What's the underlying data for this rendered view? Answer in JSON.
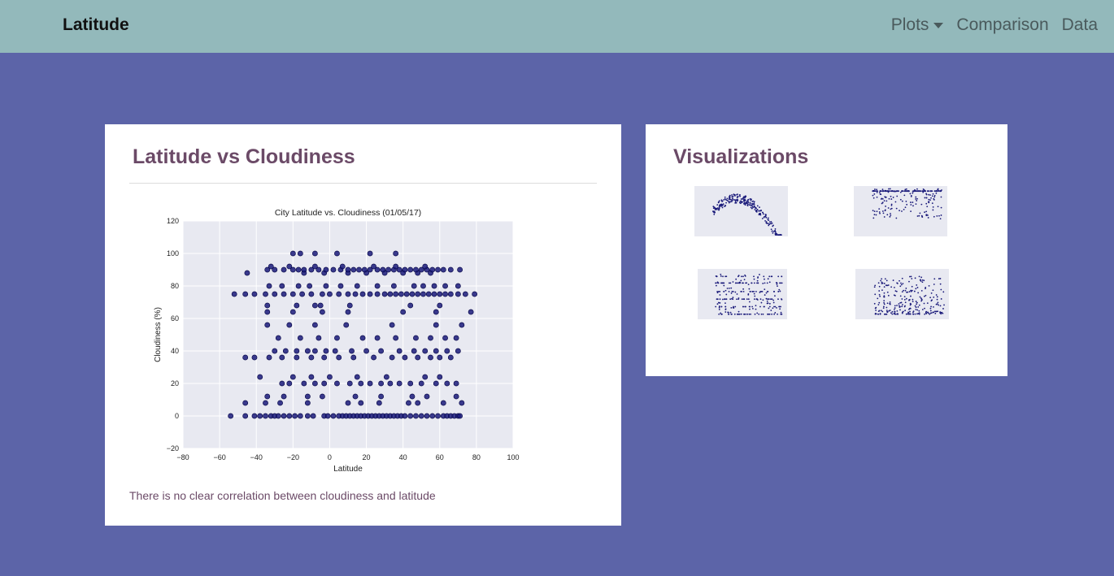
{
  "navbar": {
    "brand": "Latitude",
    "links": [
      {
        "label": "Plots",
        "dropdown": true
      },
      {
        "label": "Comparison"
      },
      {
        "label": "Data"
      }
    ]
  },
  "main_card": {
    "title": "Latitude vs Cloudiness",
    "caption": "There is no clear correlation between cloudiness and latitude"
  },
  "viz_card": {
    "title": "Visualizations",
    "thumbnails": [
      {
        "name": "max-temperature-plot"
      },
      {
        "name": "humidity-plot"
      },
      {
        "name": "cloudiness-plot"
      },
      {
        "name": "wind-speed-plot"
      }
    ]
  },
  "colors": {
    "page_bg": "#5c64a8",
    "navbar_bg": "#93b9bb",
    "title": "#6b4a67",
    "plot_bg": "#e8e9f1",
    "marker": "#1a1a7a"
  },
  "chart_data": {
    "type": "scatter",
    "title": "City Latitude vs. Cloudiness (01/05/17)",
    "xlabel": "Latitude",
    "ylabel": "Cloudiness (%)",
    "xlim": [
      -80,
      100
    ],
    "ylim": [
      -20,
      120
    ],
    "xticks": [
      -80,
      -60,
      -40,
      -20,
      0,
      20,
      40,
      60,
      80,
      100
    ],
    "yticks": [
      -20,
      0,
      20,
      40,
      60,
      80,
      100,
      120
    ],
    "grid": true,
    "points": [
      [
        -54,
        0
      ],
      [
        -46,
        0
      ],
      [
        -41,
        0
      ],
      [
        -38,
        0
      ],
      [
        -35,
        0
      ],
      [
        -32,
        0
      ],
      [
        -30,
        0
      ],
      [
        -28,
        0
      ],
      [
        -25,
        0
      ],
      [
        -22,
        0
      ],
      [
        -19,
        0
      ],
      [
        -16,
        0
      ],
      [
        -12,
        0
      ],
      [
        -9,
        0
      ],
      [
        -3,
        0
      ],
      [
        -1,
        0
      ],
      [
        2,
        0
      ],
      [
        5,
        0
      ],
      [
        7,
        0
      ],
      [
        9,
        0
      ],
      [
        11,
        0
      ],
      [
        13,
        0
      ],
      [
        15,
        0
      ],
      [
        17,
        0
      ],
      [
        19,
        0
      ],
      [
        21,
        0
      ],
      [
        23,
        0
      ],
      [
        25,
        0
      ],
      [
        27,
        0
      ],
      [
        29,
        0
      ],
      [
        31,
        0
      ],
      [
        33,
        0
      ],
      [
        35,
        0
      ],
      [
        37,
        0
      ],
      [
        39,
        0
      ],
      [
        41,
        0
      ],
      [
        44,
        0
      ],
      [
        47,
        0
      ],
      [
        50,
        0
      ],
      [
        53,
        0
      ],
      [
        56,
        0
      ],
      [
        59,
        0
      ],
      [
        62,
        0
      ],
      [
        64,
        0
      ],
      [
        66,
        0
      ],
      [
        68,
        0
      ],
      [
        70,
        0
      ],
      [
        71,
        0
      ],
      [
        -46,
        8
      ],
      [
        -35,
        8
      ],
      [
        -27,
        8
      ],
      [
        -12,
        8
      ],
      [
        10,
        8
      ],
      [
        17,
        8
      ],
      [
        27,
        8
      ],
      [
        43,
        8
      ],
      [
        48,
        8
      ],
      [
        62,
        8
      ],
      [
        72,
        8
      ],
      [
        -34,
        12
      ],
      [
        -25,
        12
      ],
      [
        -12,
        12
      ],
      [
        -4,
        12
      ],
      [
        14,
        12
      ],
      [
        28,
        12
      ],
      [
        45,
        12
      ],
      [
        53,
        12
      ],
      [
        69,
        12
      ],
      [
        -26,
        20
      ],
      [
        -22,
        20
      ],
      [
        -14,
        20
      ],
      [
        -8,
        20
      ],
      [
        -3,
        20
      ],
      [
        4,
        20
      ],
      [
        11,
        20
      ],
      [
        17,
        20
      ],
      [
        22,
        20
      ],
      [
        28,
        20
      ],
      [
        33,
        20
      ],
      [
        38,
        20
      ],
      [
        44,
        20
      ],
      [
        50,
        20
      ],
      [
        58,
        20
      ],
      [
        64,
        20
      ],
      [
        69,
        20
      ],
      [
        -38,
        24
      ],
      [
        -20,
        24
      ],
      [
        -10,
        24
      ],
      [
        0,
        24
      ],
      [
        15,
        24
      ],
      [
        31,
        24
      ],
      [
        52,
        24
      ],
      [
        60,
        24
      ],
      [
        -46,
        36
      ],
      [
        -41,
        36
      ],
      [
        -33,
        36
      ],
      [
        -26,
        36
      ],
      [
        -18,
        36
      ],
      [
        -10,
        36
      ],
      [
        -3,
        36
      ],
      [
        5,
        36
      ],
      [
        13,
        36
      ],
      [
        24,
        36
      ],
      [
        34,
        36
      ],
      [
        41,
        36
      ],
      [
        48,
        36
      ],
      [
        55,
        36
      ],
      [
        60,
        36
      ],
      [
        66,
        36
      ],
      [
        -30,
        40
      ],
      [
        -24,
        40
      ],
      [
        -18,
        40
      ],
      [
        -12,
        40
      ],
      [
        -8,
        40
      ],
      [
        -2,
        40
      ],
      [
        3,
        40
      ],
      [
        12,
        40
      ],
      [
        20,
        40
      ],
      [
        28,
        40
      ],
      [
        38,
        40
      ],
      [
        46,
        40
      ],
      [
        52,
        40
      ],
      [
        58,
        40
      ],
      [
        64,
        40
      ],
      [
        70,
        40
      ],
      [
        -28,
        48
      ],
      [
        -16,
        48
      ],
      [
        -6,
        48
      ],
      [
        4,
        48
      ],
      [
        18,
        48
      ],
      [
        26,
        48
      ],
      [
        36,
        48
      ],
      [
        47,
        48
      ],
      [
        55,
        48
      ],
      [
        63,
        48
      ],
      [
        69,
        48
      ],
      [
        -34,
        56
      ],
      [
        -22,
        56
      ],
      [
        -8,
        56
      ],
      [
        9,
        56
      ],
      [
        34,
        56
      ],
      [
        58,
        56
      ],
      [
        72,
        56
      ],
      [
        -34,
        64
      ],
      [
        -20,
        64
      ],
      [
        -4,
        64
      ],
      [
        10,
        64
      ],
      [
        40,
        64
      ],
      [
        58,
        64
      ],
      [
        77,
        64
      ],
      [
        -34,
        68
      ],
      [
        -18,
        68
      ],
      [
        -8,
        68
      ],
      [
        -5,
        68
      ],
      [
        11,
        68
      ],
      [
        44,
        68
      ],
      [
        60,
        68
      ],
      [
        -52,
        75
      ],
      [
        -46,
        75
      ],
      [
        -41,
        75
      ],
      [
        -35,
        75
      ],
      [
        -30,
        75
      ],
      [
        -25,
        75
      ],
      [
        -20,
        75
      ],
      [
        -15,
        75
      ],
      [
        -10,
        75
      ],
      [
        -4,
        75
      ],
      [
        0,
        75
      ],
      [
        5,
        75
      ],
      [
        10,
        75
      ],
      [
        14,
        75
      ],
      [
        18,
        75
      ],
      [
        22,
        75
      ],
      [
        26,
        75
      ],
      [
        30,
        75
      ],
      [
        33,
        75
      ],
      [
        36,
        75
      ],
      [
        39,
        75
      ],
      [
        42,
        75
      ],
      [
        45,
        75
      ],
      [
        48,
        75
      ],
      [
        51,
        75
      ],
      [
        54,
        75
      ],
      [
        57,
        75
      ],
      [
        60,
        75
      ],
      [
        63,
        75
      ],
      [
        66,
        75
      ],
      [
        70,
        75
      ],
      [
        74,
        75
      ],
      [
        79,
        75
      ],
      [
        -33,
        80
      ],
      [
        -26,
        80
      ],
      [
        -17,
        80
      ],
      [
        -11,
        80
      ],
      [
        -2,
        80
      ],
      [
        6,
        80
      ],
      [
        15,
        80
      ],
      [
        26,
        80
      ],
      [
        35,
        80
      ],
      [
        46,
        80
      ],
      [
        51,
        80
      ],
      [
        57,
        80
      ],
      [
        63,
        80
      ],
      [
        70,
        80
      ],
      [
        -45,
        88
      ],
      [
        -14,
        88
      ],
      [
        -3,
        88
      ],
      [
        10,
        88
      ],
      [
        20,
        88
      ],
      [
        30,
        88
      ],
      [
        40,
        88
      ],
      [
        48,
        88
      ],
      [
        55,
        88
      ],
      [
        -34,
        90
      ],
      [
        -30,
        90
      ],
      [
        -25,
        90
      ],
      [
        -20,
        90
      ],
      [
        -17,
        90
      ],
      [
        -14,
        90
      ],
      [
        -10,
        90
      ],
      [
        -6,
        90
      ],
      [
        -2,
        90
      ],
      [
        2,
        90
      ],
      [
        6,
        90
      ],
      [
        10,
        90
      ],
      [
        13,
        90
      ],
      [
        16,
        90
      ],
      [
        19,
        90
      ],
      [
        22,
        90
      ],
      [
        26,
        90
      ],
      [
        29,
        90
      ],
      [
        32,
        90
      ],
      [
        35,
        90
      ],
      [
        38,
        90
      ],
      [
        41,
        90
      ],
      [
        44,
        90
      ],
      [
        47,
        90
      ],
      [
        50,
        90
      ],
      [
        53,
        90
      ],
      [
        56,
        90
      ],
      [
        59,
        90
      ],
      [
        62,
        90
      ],
      [
        66,
        90
      ],
      [
        71,
        90
      ],
      [
        -32,
        92
      ],
      [
        -22,
        92
      ],
      [
        -8,
        92
      ],
      [
        7,
        92
      ],
      [
        24,
        92
      ],
      [
        36,
        92
      ],
      [
        52,
        92
      ],
      [
        -20,
        100
      ],
      [
        -16,
        100
      ],
      [
        -8,
        100
      ],
      [
        4,
        100
      ],
      [
        22,
        100
      ],
      [
        36,
        100
      ]
    ]
  }
}
